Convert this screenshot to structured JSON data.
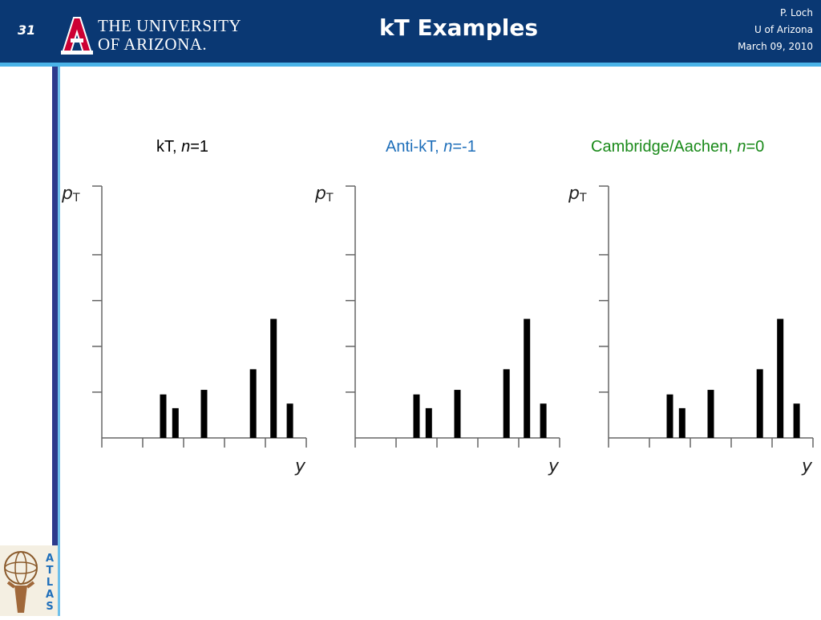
{
  "header": {
    "slide_number": "31",
    "university_line1": "THE UNIVERSITY",
    "university_line2": "OF ARIZONA.",
    "title": "kT Examples",
    "author": "P. Loch",
    "affiliation": "U of Arizona",
    "date": "March 09, 2010"
  },
  "colors": {
    "header_bg": "#0a3873",
    "accent_line": "#4ab3e8",
    "kt_label": "#000000",
    "antikt_label": "#1f6fba",
    "ca_label": "#1a8a1a"
  },
  "logo": {
    "atlas_text": "ATLAS"
  },
  "chart_data": [
    {
      "type": "bar",
      "title_prefix": "kT, ",
      "title_var": "n",
      "title_suffix": "=1",
      "xlabel": "y",
      "ylabel_main": "p",
      "ylabel_sub": "T",
      "x": [
        1.0,
        1.3,
        2.0,
        3.2,
        3.7,
        4.1
      ],
      "values": [
        0.95,
        0.65,
        1.05,
        1.5,
        2.6,
        0.75
      ],
      "xlim": [
        -0.5,
        4.5
      ],
      "ylim": [
        0,
        5.5
      ],
      "x_ticks": [
        -0.5,
        0.5,
        1.5,
        2.5,
        3.5,
        4.5
      ],
      "y_ticks": [
        1,
        2,
        3,
        4,
        5.5
      ]
    },
    {
      "type": "bar",
      "title_prefix": "Anti-kT, ",
      "title_var": "n",
      "title_suffix": "=-1",
      "xlabel": "y",
      "ylabel_main": "p",
      "ylabel_sub": "T",
      "x": [
        1.0,
        1.3,
        2.0,
        3.2,
        3.7,
        4.1
      ],
      "values": [
        0.95,
        0.65,
        1.05,
        1.5,
        2.6,
        0.75
      ],
      "xlim": [
        -0.5,
        4.5
      ],
      "ylim": [
        0,
        5.5
      ],
      "x_ticks": [
        -0.5,
        0.5,
        1.5,
        2.5,
        3.5,
        4.5
      ],
      "y_ticks": [
        1,
        2,
        3,
        4,
        5.5
      ]
    },
    {
      "type": "bar",
      "title_prefix": "Cambridge/Aachen, ",
      "title_var": "n",
      "title_suffix": "=0",
      "xlabel": "y",
      "ylabel_main": "p",
      "ylabel_sub": "T",
      "x": [
        1.0,
        1.3,
        2.0,
        3.2,
        3.7,
        4.1
      ],
      "values": [
        0.95,
        0.65,
        1.05,
        1.5,
        2.6,
        0.75
      ],
      "xlim": [
        -0.5,
        4.5
      ],
      "ylim": [
        0,
        5.5
      ],
      "x_ticks": [
        -0.5,
        0.5,
        1.5,
        2.5,
        3.5,
        4.5
      ],
      "y_ticks": [
        1,
        2,
        3,
        4,
        5.5
      ]
    }
  ]
}
